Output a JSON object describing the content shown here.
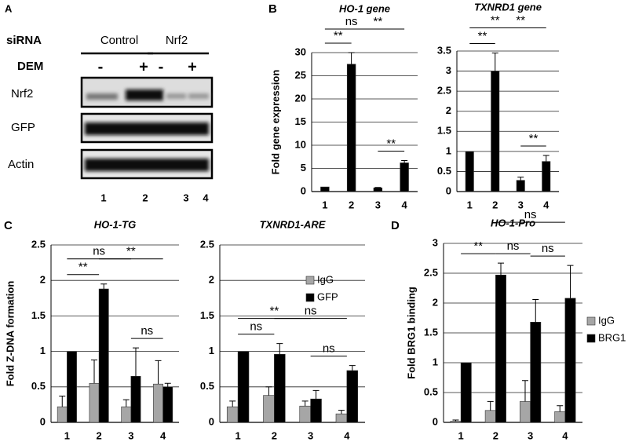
{
  "blot": {
    "panel": "A",
    "sirna_label": "siRNA",
    "groups": [
      "Control",
      "Nrf2"
    ],
    "treatment_label": "DEM",
    "treatments": [
      "-",
      "+",
      "-",
      "+"
    ],
    "rows": [
      "Nrf2",
      "GFP",
      "Actin"
    ],
    "lanes": [
      "1",
      "2",
      "3",
      "4"
    ]
  },
  "chart_data": [
    {
      "type": "bar",
      "panel": "B",
      "title": "HO-1 gene",
      "ylabel": "Fold gene expression",
      "categories": [
        "1",
        "2",
        "3",
        "4"
      ],
      "values": [
        1,
        27.5,
        0.8,
        6.2
      ],
      "errors": [
        0,
        2.5,
        0.1,
        0.5
      ],
      "color": "#000000",
      "ylim": [
        0,
        30
      ],
      "yticks": [
        0,
        5,
        10,
        15,
        20,
        25,
        30
      ],
      "grid": true,
      "comparisons": [
        {
          "label": "ns",
          "from": "1",
          "to": "3"
        },
        {
          "label": "**",
          "from": "1",
          "to": "2"
        },
        {
          "label": "**",
          "from": "2",
          "to": "4"
        },
        {
          "label": "**",
          "from": "3",
          "to": "4"
        }
      ]
    },
    {
      "type": "bar",
      "title": "TXNRD1 gene",
      "categories": [
        "1",
        "2",
        "3",
        "4"
      ],
      "values": [
        1,
        3,
        0.28,
        0.75
      ],
      "errors": [
        0,
        0.45,
        0.08,
        0.15
      ],
      "color": "#000000",
      "ylim": [
        0,
        3.5
      ],
      "yticks": [
        0,
        0.5,
        1,
        1.5,
        2,
        2.5,
        3,
        3.5
      ],
      "grid": true,
      "comparisons": [
        {
          "label": "**",
          "from": "1",
          "to": "3"
        },
        {
          "label": "**",
          "from": "1",
          "to": "2"
        },
        {
          "label": "**",
          "from": "2",
          "to": "4"
        },
        {
          "label": "**",
          "from": "3",
          "to": "4"
        }
      ]
    },
    {
      "type": "bar",
      "panel": "C",
      "title": "HO-1-TG",
      "ylabel": "Fold Z-DNA formation",
      "categories": [
        "1",
        "2",
        "3",
        "4"
      ],
      "ylim": [
        0,
        2.5
      ],
      "yticks": [
        0,
        0.5,
        1,
        1.5,
        2,
        2.5
      ],
      "grid": true,
      "series": [
        {
          "color": "#a6a6a6",
          "values": [
            0.22,
            0.55,
            0.22,
            0.54
          ],
          "errors": [
            0.15,
            0.33,
            0.1,
            0.33
          ]
        },
        {
          "color": "#000000",
          "values": [
            1,
            1.88,
            0.65,
            0.5
          ],
          "errors": [
            0,
            0.07,
            0.4,
            0.05
          ]
        }
      ],
      "comparisons": [
        {
          "label": "ns",
          "from": "1",
          "to": "3"
        },
        {
          "label": "**",
          "from": "1",
          "to": "2"
        },
        {
          "label": "**",
          "from": "2",
          "to": "4"
        },
        {
          "label": "ns",
          "from": "3",
          "to": "4"
        }
      ]
    },
    {
      "type": "bar",
      "title": "TXNRD1-ARE",
      "categories": [
        "1",
        "2",
        "3",
        "4"
      ],
      "ylim": [
        0,
        2.5
      ],
      "yticks": [
        0,
        0.5,
        1,
        1.5,
        2,
        2.5
      ],
      "grid": true,
      "legend": "upper right",
      "series": [
        {
          "name": "IgG",
          "color": "#a6a6a6",
          "values": [
            0.22,
            0.38,
            0.23,
            0.12
          ],
          "errors": [
            0.08,
            0.12,
            0.07,
            0.05
          ]
        },
        {
          "name": "GFP",
          "color": "#000000",
          "values": [
            1,
            0.96,
            0.33,
            0.73
          ],
          "errors": [
            0,
            0.15,
            0.12,
            0.07
          ]
        }
      ],
      "comparisons": [
        {
          "label": "**",
          "from": "1",
          "to": "3"
        },
        {
          "label": "ns",
          "from": "1",
          "to": "2"
        },
        {
          "label": "ns",
          "from": "2",
          "to": "4"
        },
        {
          "label": "ns",
          "from": "3",
          "to": "4"
        }
      ]
    },
    {
      "type": "bar",
      "panel": "D",
      "title": "HO-1-Pro",
      "ylabel": "Fold BRG1 binding",
      "categories": [
        "1",
        "2",
        "3",
        "4"
      ],
      "ylim": [
        0,
        3
      ],
      "yticks": [
        0,
        0.5,
        1,
        1.5,
        2,
        2.5,
        3
      ],
      "grid": true,
      "legend": "outside right",
      "series": [
        {
          "name": "IgG",
          "color": "#a6a6a6",
          "values": [
            0.02,
            0.2,
            0.35,
            0.18
          ],
          "errors": [
            0.02,
            0.15,
            0.35,
            0.1
          ]
        },
        {
          "name": "BRG1",
          "color": "#000000",
          "values": [
            1,
            2.47,
            1.68,
            2.08
          ],
          "errors": [
            0,
            0.2,
            0.38,
            0.55
          ]
        }
      ],
      "comparisons": [
        {
          "label": "ns",
          "from": "2",
          "to": "3"
        },
        {
          "label": "ns",
          "from": "3",
          "to": "4"
        },
        {
          "label": "**",
          "from": "1",
          "to": "2"
        },
        {
          "label": "ns",
          "from": "2",
          "to": "4"
        }
      ]
    }
  ]
}
